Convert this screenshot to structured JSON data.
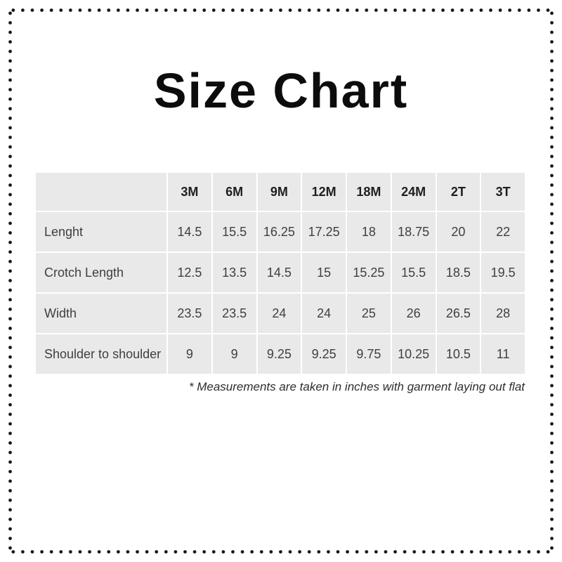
{
  "page": {
    "title": "Size Chart"
  },
  "table": {
    "columns": [
      "",
      "3M",
      "6M",
      "9M",
      "12M",
      "18M",
      "24M",
      "2T",
      "3T"
    ],
    "rows": [
      {
        "label": "Lenght",
        "values": [
          "14.5",
          "15.5",
          "16.25",
          "17.25",
          "18",
          "18.75",
          "20",
          "22"
        ]
      },
      {
        "label": "Crotch Length",
        "values": [
          "12.5",
          "13.5",
          "14.5",
          "15",
          "15.25",
          "15.5",
          "18.5",
          "19.5"
        ]
      },
      {
        "label": "Width",
        "values": [
          "23.5",
          "23.5",
          "24",
          "24",
          "25",
          "26",
          "26.5",
          "28"
        ]
      },
      {
        "label": "Shoulder to shoulder",
        "values": [
          "9",
          "9",
          "9.25",
          "9.25",
          "9.75",
          "10.25",
          "10.5",
          "11"
        ]
      }
    ]
  },
  "footnote": "* Measurements are taken in inches with garment laying out flat",
  "units_note": "inches",
  "colors": {
    "page_bg": "#ffffff",
    "border_dot": "#141414",
    "cell_bg": "#e9e9e9",
    "header_text": "#1f1f1f",
    "body_text": "#3f3f3f",
    "title_text": "#0c0c0c",
    "footnote_text": "#2e2e2e"
  }
}
